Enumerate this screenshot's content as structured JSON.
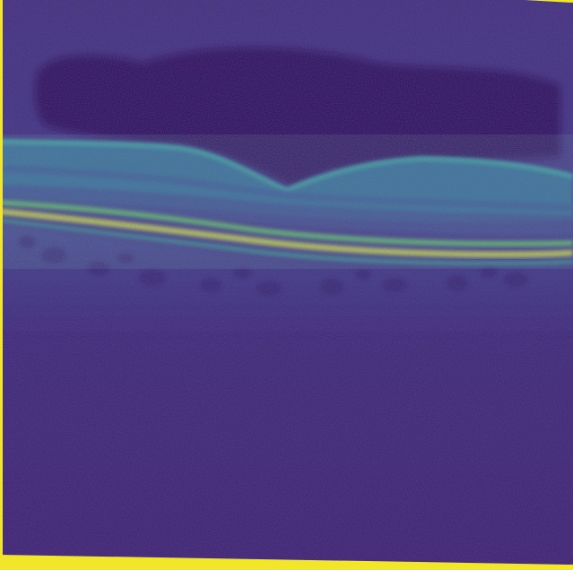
{
  "image": {
    "kind": "retinal OCT B-scan (viridis colormap)",
    "palette": {
      "background": "#3e2a78",
      "deep_background": "#3a1f6e",
      "vitreous_dark": "#2b0f57",
      "retina_teal": "#2a8fa0",
      "retina_green": "#25a98b",
      "bright_layer": "#6fd25a",
      "rpe_yellow": "#d9e73b",
      "edge_yellow": "#f2e62a"
    }
  }
}
